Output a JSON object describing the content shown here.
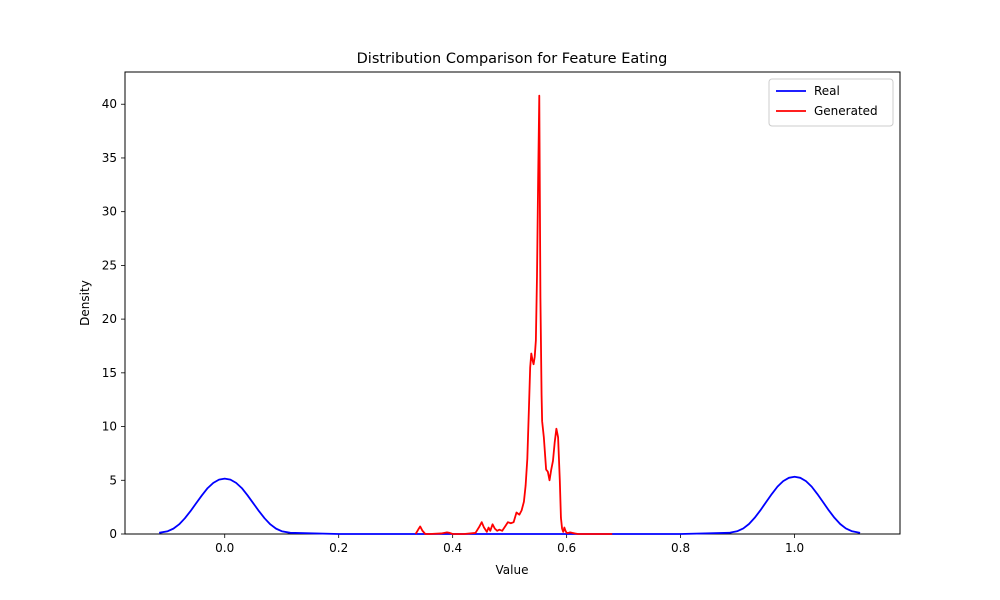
{
  "chart_data": {
    "type": "line",
    "title": "Distribution Comparison for Feature Eating",
    "xlabel": "Value",
    "ylabel": "Density",
    "xlim": [
      -0.175,
      1.185
    ],
    "ylim": [
      0,
      43
    ],
    "xticks": [
      0.0,
      0.2,
      0.4,
      0.6,
      0.8,
      1.0
    ],
    "xtick_labels": [
      "0.0",
      "0.2",
      "0.4",
      "0.6",
      "0.8",
      "1.0"
    ],
    "yticks": [
      0,
      5,
      10,
      15,
      20,
      25,
      30,
      35,
      40
    ],
    "ytick_labels": [
      "0",
      "5",
      "10",
      "15",
      "20",
      "25",
      "30",
      "35",
      "40"
    ],
    "grid": false,
    "legend_position": "top-right",
    "series": [
      {
        "name": "Real",
        "color": "#0000ff",
        "x": [
          -0.115,
          -0.1,
          -0.09,
          -0.08,
          -0.07,
          -0.06,
          -0.05,
          -0.04,
          -0.03,
          -0.02,
          -0.01,
          0.0,
          0.01,
          0.02,
          0.03,
          0.04,
          0.05,
          0.06,
          0.07,
          0.08,
          0.09,
          0.1,
          0.115,
          0.2,
          0.4,
          0.6,
          0.8,
          0.885,
          0.9,
          0.91,
          0.92,
          0.93,
          0.94,
          0.95,
          0.96,
          0.97,
          0.98,
          0.99,
          1.0,
          1.01,
          1.02,
          1.03,
          1.04,
          1.05,
          1.06,
          1.07,
          1.08,
          1.09,
          1.1,
          1.115
        ],
        "y": [
          0.11,
          0.26,
          0.5,
          0.9,
          1.46,
          2.13,
          2.87,
          3.6,
          4.27,
          4.76,
          5.06,
          5.15,
          5.06,
          4.76,
          4.27,
          3.6,
          2.87,
          2.13,
          1.46,
          0.9,
          0.5,
          0.26,
          0.11,
          0.0,
          0.0,
          0.0,
          0.0,
          0.11,
          0.27,
          0.52,
          0.93,
          1.51,
          2.2,
          2.97,
          3.72,
          4.41,
          4.92,
          5.23,
          5.33,
          5.23,
          4.92,
          4.41,
          3.72,
          2.97,
          2.2,
          1.51,
          0.93,
          0.52,
          0.27,
          0.11
        ]
      },
      {
        "name": "Generated",
        "color": "#ff0000",
        "x": [
          0.335,
          0.34,
          0.343,
          0.347,
          0.352,
          0.36,
          0.38,
          0.39,
          0.395,
          0.4,
          0.42,
          0.44,
          0.447,
          0.451,
          0.455,
          0.46,
          0.463,
          0.466,
          0.47,
          0.474,
          0.478,
          0.482,
          0.487,
          0.492,
          0.497,
          0.502,
          0.507,
          0.512,
          0.517,
          0.521,
          0.525,
          0.528,
          0.531,
          0.534,
          0.536,
          0.538,
          0.54,
          0.542,
          0.544,
          0.546,
          0.548,
          0.55,
          0.552,
          0.554,
          0.556,
          0.557,
          0.558,
          0.56,
          0.562,
          0.564,
          0.567,
          0.57,
          0.573,
          0.576,
          0.579,
          0.582,
          0.585,
          0.588,
          0.59,
          0.592,
          0.594,
          0.596,
          0.598,
          0.6,
          0.603,
          0.606,
          0.61,
          0.615,
          0.62,
          0.624,
          0.627,
          0.63,
          0.635,
          0.645,
          0.66,
          0.67,
          0.68
        ],
        "y": [
          0.0,
          0.45,
          0.7,
          0.3,
          0.0,
          0.0,
          0.05,
          0.15,
          0.1,
          0.0,
          0.0,
          0.1,
          0.7,
          1.1,
          0.6,
          0.2,
          0.6,
          0.3,
          0.9,
          0.5,
          0.3,
          0.4,
          0.3,
          0.7,
          1.1,
          1.0,
          1.1,
          2.0,
          1.8,
          2.2,
          3.0,
          4.5,
          7.0,
          12.0,
          15.5,
          16.8,
          16.2,
          15.8,
          16.5,
          18.0,
          24.0,
          33.0,
          40.8,
          22.0,
          13.0,
          10.5,
          10.0,
          9.0,
          7.5,
          6.0,
          5.8,
          5.0,
          6.0,
          6.8,
          8.5,
          9.8,
          9.0,
          5.0,
          1.5,
          0.5,
          0.2,
          0.6,
          0.3,
          0.1,
          0.1,
          0.15,
          0.1,
          0.05,
          0.0,
          0.0,
          0.0,
          0.0,
          0.0,
          0.0,
          0.0,
          0.0,
          0.0
        ]
      }
    ]
  }
}
